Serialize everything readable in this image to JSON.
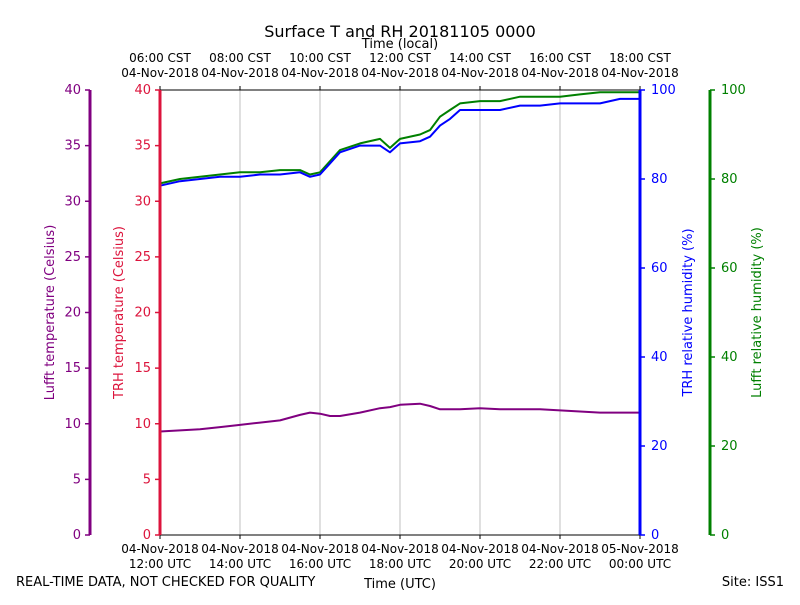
{
  "chart_data": {
    "type": "line",
    "title": "Surface T and RH 20181105 0000",
    "top_axis_label": "Time (local)",
    "top_ticks": [
      {
        "time": "06:00 CST",
        "date": "04-Nov-2018"
      },
      {
        "time": "08:00 CST",
        "date": "04-Nov-2018"
      },
      {
        "time": "10:00 CST",
        "date": "04-Nov-2018"
      },
      {
        "time": "12:00 CST",
        "date": "04-Nov-2018"
      },
      {
        "time": "14:00 CST",
        "date": "04-Nov-2018"
      },
      {
        "time": "16:00 CST",
        "date": "04-Nov-2018"
      },
      {
        "time": "18:00 CST",
        "date": "04-Nov-2018"
      }
    ],
    "xlabel": "Time (UTC)",
    "x_ticks": [
      {
        "date": "04-Nov-2018",
        "time": "12:00 UTC"
      },
      {
        "date": "04-Nov-2018",
        "time": "14:00 UTC"
      },
      {
        "date": "04-Nov-2018",
        "time": "16:00 UTC"
      },
      {
        "date": "04-Nov-2018",
        "time": "18:00 UTC"
      },
      {
        "date": "04-Nov-2018",
        "time": "20:00 UTC"
      },
      {
        "date": "04-Nov-2018",
        "time": "22:00 UTC"
      },
      {
        "date": "05-Nov-2018",
        "time": "00:00 UTC"
      }
    ],
    "xlim_utc": [
      "2018-11-04 12:00",
      "2018-11-05 00:00"
    ],
    "grid": "vertical",
    "y_axes": {
      "lufft_temperature": {
        "label": "Lufft temperature (Celsius)",
        "ticks": [
          0,
          5,
          10,
          15,
          20,
          25,
          30,
          35,
          40
        ],
        "ylim": [
          0,
          40
        ],
        "color": "#800080"
      },
      "trh_temperature": {
        "label": "TRH temperature (Celsius)",
        "ticks": [
          0,
          5,
          10,
          15,
          20,
          25,
          30,
          35,
          40
        ],
        "ylim": [
          0,
          40
        ],
        "color": "#dc143c"
      },
      "trh_relative_humidity": {
        "label": "TRH relative humidity (%)",
        "ticks": [
          0,
          20,
          40,
          60,
          80,
          100
        ],
        "ylim": [
          0,
          100
        ],
        "color": "#0000ff"
      },
      "lufft_relative_humidity": {
        "label": "Lufft relative humidity (%)",
        "ticks": [
          0,
          20,
          40,
          60,
          80,
          100
        ],
        "ylim": [
          0,
          100
        ],
        "color": "#008000"
      }
    },
    "series": [
      {
        "axis": "lufft_relative_humidity",
        "color": "#008000",
        "x": [
          "2018-11-04 12:00",
          "2018-11-04 12:30",
          "2018-11-04 13:00",
          "2018-11-04 13:30",
          "2018-11-04 14:00",
          "2018-11-04 14:30",
          "2018-11-04 15:00",
          "2018-11-04 15:30",
          "2018-11-04 15:45",
          "2018-11-04 16:00",
          "2018-11-04 16:15",
          "2018-11-04 16:30",
          "2018-11-04 17:00",
          "2018-11-04 17:30",
          "2018-11-04 17:45",
          "2018-11-04 18:00",
          "2018-11-04 18:30",
          "2018-11-04 18:45",
          "2018-11-04 19:00",
          "2018-11-04 19:15",
          "2018-11-04 19:30",
          "2018-11-04 20:00",
          "2018-11-04 20:30",
          "2018-11-04 21:00",
          "2018-11-04 21:30",
          "2018-11-04 22:00",
          "2018-11-04 22:30",
          "2018-11-04 23:00",
          "2018-11-04 23:30",
          "2018-11-05 00:00"
        ],
        "y": [
          79,
          80,
          80.5,
          81,
          81.5,
          81.5,
          82,
          82,
          81,
          81.5,
          84,
          86.5,
          88,
          89,
          87,
          89,
          90,
          91,
          94,
          95.5,
          97,
          97.5,
          97.5,
          98.5,
          98.5,
          98.5,
          99,
          99.5,
          99.5,
          99.5
        ]
      },
      {
        "axis": "trh_relative_humidity",
        "color": "#0000ff",
        "x": [
          "2018-11-04 12:00",
          "2018-11-04 12:30",
          "2018-11-04 13:00",
          "2018-11-04 13:30",
          "2018-11-04 14:00",
          "2018-11-04 14:30",
          "2018-11-04 15:00",
          "2018-11-04 15:30",
          "2018-11-04 15:45",
          "2018-11-04 16:00",
          "2018-11-04 16:15",
          "2018-11-04 16:30",
          "2018-11-04 17:00",
          "2018-11-04 17:30",
          "2018-11-04 17:45",
          "2018-11-04 18:00",
          "2018-11-04 18:30",
          "2018-11-04 18:45",
          "2018-11-04 19:00",
          "2018-11-04 19:15",
          "2018-11-04 19:30",
          "2018-11-04 20:00",
          "2018-11-04 20:30",
          "2018-11-04 21:00",
          "2018-11-04 21:30",
          "2018-11-04 22:00",
          "2018-11-04 22:30",
          "2018-11-04 23:00",
          "2018-11-04 23:30",
          "2018-11-05 00:00"
        ],
        "y": [
          78.5,
          79.5,
          80,
          80.5,
          80.5,
          81,
          81,
          81.5,
          80.5,
          81,
          83.5,
          86,
          87.5,
          87.5,
          86,
          88,
          88.5,
          89.5,
          92,
          93.5,
          95.5,
          95.5,
          95.5,
          96.5,
          96.5,
          97,
          97,
          97,
          98,
          98
        ]
      },
      {
        "axis": "lufft_temperature",
        "color": "#800080",
        "x": [
          "2018-11-04 12:00",
          "2018-11-04 12:30",
          "2018-11-04 13:00",
          "2018-11-04 13:30",
          "2018-11-04 14:00",
          "2018-11-04 14:30",
          "2018-11-04 15:00",
          "2018-11-04 15:30",
          "2018-11-04 15:45",
          "2018-11-04 16:00",
          "2018-11-04 16:15",
          "2018-11-04 16:30",
          "2018-11-04 17:00",
          "2018-11-04 17:30",
          "2018-11-04 17:45",
          "2018-11-04 18:00",
          "2018-11-04 18:30",
          "2018-11-04 18:45",
          "2018-11-04 19:00",
          "2018-11-04 19:15",
          "2018-11-04 19:30",
          "2018-11-04 20:00",
          "2018-11-04 20:30",
          "2018-11-04 21:00",
          "2018-11-04 21:30",
          "2018-11-04 22:00",
          "2018-11-04 22:30",
          "2018-11-04 23:00",
          "2018-11-04 23:30",
          "2018-11-05 00:00"
        ],
        "y": [
          9.3,
          9.4,
          9.5,
          9.7,
          9.9,
          10.1,
          10.3,
          10.8,
          11,
          10.9,
          10.7,
          10.7,
          11,
          11.4,
          11.5,
          11.7,
          11.8,
          11.6,
          11.3,
          11.3,
          11.3,
          11.4,
          11.3,
          11.3,
          11.3,
          11.2,
          11.1,
          11,
          11,
          11
        ]
      }
    ],
    "footer_left": "REAL-TIME DATA, NOT CHECKED FOR QUALITY",
    "footer_right": "Site: ISS1"
  }
}
